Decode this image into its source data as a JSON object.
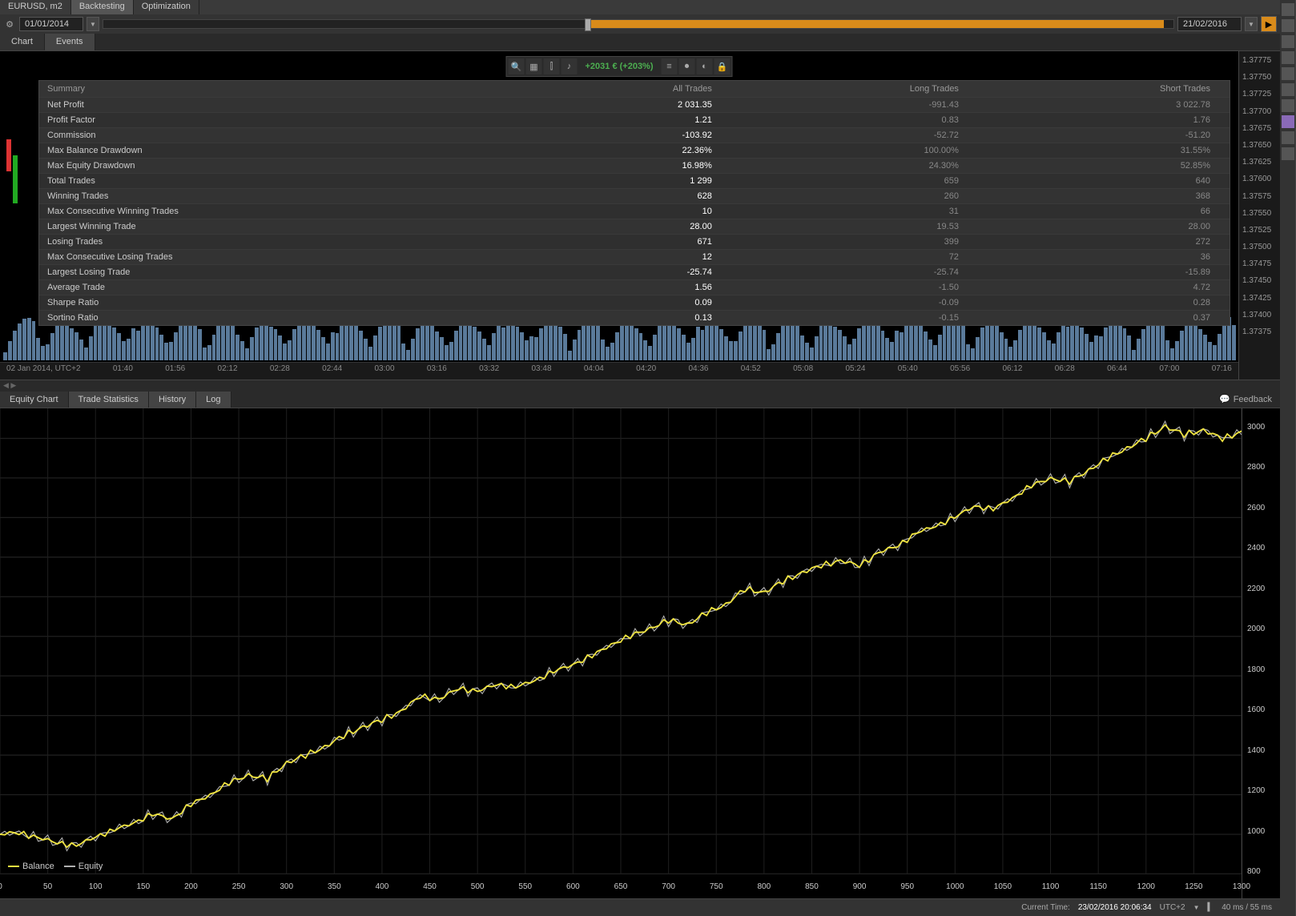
{
  "instrument_label": "EURUSD, m2",
  "top_tabs": [
    "Backtesting",
    "Optimization"
  ],
  "active_top_tab": 0,
  "date_from": "01/01/2014",
  "date_to": "21/02/2016",
  "slider_fill_pct": 55,
  "chart_tabs": [
    "Chart",
    "Events"
  ],
  "active_chart_tab": 0,
  "profit_badge": "+2031 € (+203%)",
  "stats": {
    "headers": [
      "Summary",
      "All Trades",
      "Long Trades",
      "Short Trades"
    ],
    "rows": [
      [
        "Net Profit",
        "2 031.35",
        "-991.43",
        "3 022.78"
      ],
      [
        "Profit Factor",
        "1.21",
        "0.83",
        "1.76"
      ],
      [
        "Commission",
        "-103.92",
        "-52.72",
        "-51.20"
      ],
      [
        "Max Balance Drawdown",
        "22.36%",
        "100.00%",
        "31.55%"
      ],
      [
        "Max Equity Drawdown",
        "16.98%",
        "24.30%",
        "52.85%"
      ],
      [
        "Total Trades",
        "1 299",
        "659",
        "640"
      ],
      [
        "Winning Trades",
        "628",
        "260",
        "368"
      ],
      [
        "Max Consecutive Winning Trades",
        "10",
        "31",
        "66"
      ],
      [
        "Largest Winning Trade",
        "28.00",
        "19.53",
        "28.00"
      ],
      [
        "Losing Trades",
        "671",
        "399",
        "272"
      ],
      [
        "Max Consecutive Losing Trades",
        "12",
        "72",
        "36"
      ],
      [
        "Largest Losing Trade",
        "-25.74",
        "-25.74",
        "-15.89"
      ],
      [
        "Average Trade",
        "1.56",
        "-1.50",
        "4.72"
      ],
      [
        "Sharpe Ratio",
        "0.09",
        "-0.09",
        "0.28"
      ],
      [
        "Sortino Ratio",
        "0.13",
        "-0.15",
        "0.37"
      ]
    ]
  },
  "upper_y_ticks": [
    "1.37775",
    "1.37750",
    "1.37725",
    "1.37700",
    "1.37675",
    "1.37650",
    "1.37625",
    "1.37600",
    "1.37575",
    "1.37550",
    "1.37525",
    "1.37500",
    "1.37475",
    "1.37450",
    "1.37425",
    "1.37400",
    "1.37375"
  ],
  "upper_x_start": "02 Jan 2014, UTC+2",
  "upper_x_ticks": [
    "01:40",
    "01:56",
    "02:12",
    "02:28",
    "02:44",
    "03:00",
    "03:16",
    "03:32",
    "03:48",
    "04:04",
    "04:20",
    "04:36",
    "04:52",
    "05:08",
    "05:24",
    "05:40",
    "05:56",
    "06:12",
    "06:28",
    "06:44",
    "07:00",
    "07:16"
  ],
  "lower_tabs": [
    "Equity Chart",
    "Trade Statistics",
    "History",
    "Log"
  ],
  "active_lower_tab": 0,
  "feedback_label": "Feedback",
  "equity_chart": {
    "type": "line",
    "x_min": 0,
    "x_max": 1300,
    "y_min": 800,
    "y_max": 3100,
    "x_ticks": [
      0,
      50,
      100,
      150,
      200,
      250,
      300,
      350,
      400,
      450,
      500,
      550,
      600,
      650,
      700,
      750,
      800,
      850,
      900,
      950,
      1000,
      1050,
      1100,
      1150,
      1200,
      1250,
      1300
    ],
    "y_ticks": [
      800,
      1000,
      1200,
      1400,
      1600,
      1800,
      2000,
      2200,
      2400,
      2600,
      2800,
      3000
    ],
    "series": [
      {
        "name": "Balance",
        "color": "#f2e640",
        "width": 1.5
      },
      {
        "name": "Equity",
        "color": "#b0b0b0",
        "width": 1
      }
    ],
    "data_points": [
      [
        0,
        1000
      ],
      [
        20,
        1010
      ],
      [
        40,
        980
      ],
      [
        60,
        960
      ],
      [
        80,
        940
      ],
      [
        100,
        990
      ],
      [
        120,
        1020
      ],
      [
        140,
        1060
      ],
      [
        160,
        1100
      ],
      [
        180,
        1080
      ],
      [
        200,
        1150
      ],
      [
        220,
        1200
      ],
      [
        240,
        1260
      ],
      [
        260,
        1300
      ],
      [
        280,
        1280
      ],
      [
        300,
        1360
      ],
      [
        320,
        1400
      ],
      [
        340,
        1440
      ],
      [
        360,
        1500
      ],
      [
        380,
        1540
      ],
      [
        400,
        1580
      ],
      [
        420,
        1620
      ],
      [
        440,
        1700
      ],
      [
        460,
        1680
      ],
      [
        480,
        1740
      ],
      [
        500,
        1720
      ],
      [
        520,
        1760
      ],
      [
        540,
        1740
      ],
      [
        560,
        1780
      ],
      [
        580,
        1820
      ],
      [
        600,
        1860
      ],
      [
        620,
        1900
      ],
      [
        640,
        1960
      ],
      [
        660,
        2000
      ],
      [
        680,
        2040
      ],
      [
        700,
        2080
      ],
      [
        720,
        2060
      ],
      [
        740,
        2120
      ],
      [
        760,
        2160
      ],
      [
        780,
        2240
      ],
      [
        800,
        2220
      ],
      [
        820,
        2280
      ],
      [
        840,
        2320
      ],
      [
        860,
        2360
      ],
      [
        880,
        2380
      ],
      [
        900,
        2360
      ],
      [
        920,
        2420
      ],
      [
        940,
        2460
      ],
      [
        960,
        2520
      ],
      [
        980,
        2560
      ],
      [
        1000,
        2600
      ],
      [
        1020,
        2660
      ],
      [
        1040,
        2640
      ],
      [
        1060,
        2700
      ],
      [
        1080,
        2760
      ],
      [
        1100,
        2800
      ],
      [
        1120,
        2780
      ],
      [
        1140,
        2840
      ],
      [
        1160,
        2900
      ],
      [
        1180,
        2950
      ],
      [
        1200,
        3000
      ],
      [
        1220,
        3060
      ],
      [
        1240,
        3020
      ],
      [
        1260,
        3040
      ],
      [
        1280,
        3000
      ],
      [
        1300,
        3030
      ]
    ],
    "background_color": "#000000",
    "grid_color": "#1f1f1f"
  },
  "legend": {
    "balance": "Balance",
    "equity": "Equity"
  },
  "status": {
    "current_time_label": "Current Time:",
    "current_time": "23/02/2016 20:06:34",
    "tz": "UTC+2",
    "latency": "40 ms / 55 ms"
  },
  "colors": {
    "accent": "#d98b1a",
    "profit": "#4caf50"
  }
}
